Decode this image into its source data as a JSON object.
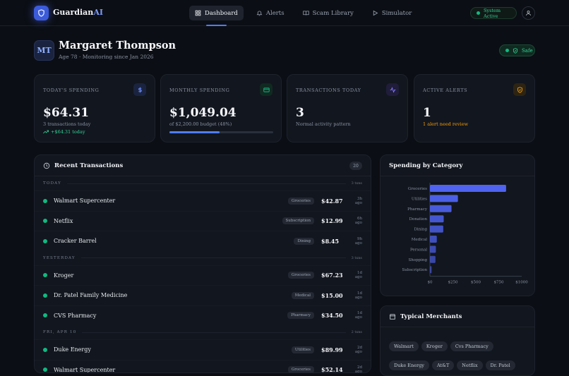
{
  "brand": {
    "name": "Guardian",
    "suffix": "AI"
  },
  "nav": [
    {
      "label": "Dashboard",
      "icon": "dashboard-icon"
    },
    {
      "label": "Alerts",
      "icon": "bell-icon"
    },
    {
      "label": "Scam Library",
      "icon": "book-icon"
    },
    {
      "label": "Simulator",
      "icon": "play-icon"
    }
  ],
  "system_status": "System Active",
  "profile": {
    "initials": "MT",
    "name": "Margaret Thompson",
    "subtitle": "Age 78 · Monitoring since Jan 2026",
    "status": "Safe"
  },
  "stats": [
    {
      "label": "TODAY'S SPENDING",
      "value": "$64.31",
      "sub": "3 transactions today",
      "extra": "+$64.31 today",
      "icon": "dollar-icon",
      "color": "#4f7cff"
    },
    {
      "label": "MONTHLY SPENDING",
      "value": "$1,049.04",
      "sub": "of $2,200.00 budget (48%)",
      "progress": 0.48,
      "icon": "wallet-icon",
      "color": "#10b981"
    },
    {
      "label": "TRANSACTIONS TODAY",
      "value": "3",
      "sub": "Normal activity pattern",
      "icon": "activity-icon",
      "color": "#8b7cff"
    },
    {
      "label": "ACTIVE ALERTS",
      "value": "1",
      "sub": "1 alert need review",
      "icon": "shield-icon",
      "color": "#f59e0b"
    }
  ],
  "transactions": {
    "title": "Recent Transactions",
    "count": "20",
    "groups": [
      {
        "name": "TODAY",
        "count": "3 txns",
        "rows": [
          {
            "merchant": "Walmart Supercenter",
            "category": "Groceries",
            "amount": "$42.87",
            "time": "3h ago"
          },
          {
            "merchant": "Netflix",
            "category": "Subscription",
            "amount": "$12.99",
            "time": "6h ago"
          },
          {
            "merchant": "Cracker Barrel",
            "category": "Dining",
            "amount": "$8.45",
            "time": "9h ago"
          }
        ]
      },
      {
        "name": "YESTERDAY",
        "count": "3 txns",
        "rows": [
          {
            "merchant": "Kroger",
            "category": "Groceries",
            "amount": "$67.23",
            "time": "1d ago"
          },
          {
            "merchant": "Dr. Patel Family Medicine",
            "category": "Medical",
            "amount": "$15.00",
            "time": "1d ago"
          },
          {
            "merchant": "CVS Pharmacy",
            "category": "Pharmacy",
            "amount": "$34.50",
            "time": "1d ago"
          }
        ]
      },
      {
        "name": "FRI, APR 10",
        "count": "2 txns",
        "rows": [
          {
            "merchant": "Duke Energy",
            "category": "Utilities",
            "amount": "$89.99",
            "time": "2d ago"
          },
          {
            "merchant": "Walmart Supercenter",
            "category": "Groceries",
            "amount": "$52.14",
            "time": "2d ago"
          }
        ]
      }
    ]
  },
  "chart_data": {
    "type": "bar",
    "orientation": "horizontal",
    "title": "Spending by Category",
    "categories": [
      "Groceries",
      "Utilities",
      "Pharmacy",
      "Donation",
      "Dining",
      "Medical",
      "Personal",
      "Shopping",
      "Subscription"
    ],
    "values": [
      830,
      305,
      235,
      150,
      145,
      75,
      65,
      60,
      18
    ],
    "xlim": [
      0,
      1000
    ],
    "xticks": [
      "$0",
      "$250",
      "$500",
      "$750",
      "$1000"
    ]
  },
  "merchants": {
    "title": "Typical Merchants",
    "items": [
      "Walmart",
      "Kroger",
      "Cvs Pharmacy",
      "Duke Energy",
      "At&T",
      "Netflix",
      "Dr. Patel"
    ]
  }
}
